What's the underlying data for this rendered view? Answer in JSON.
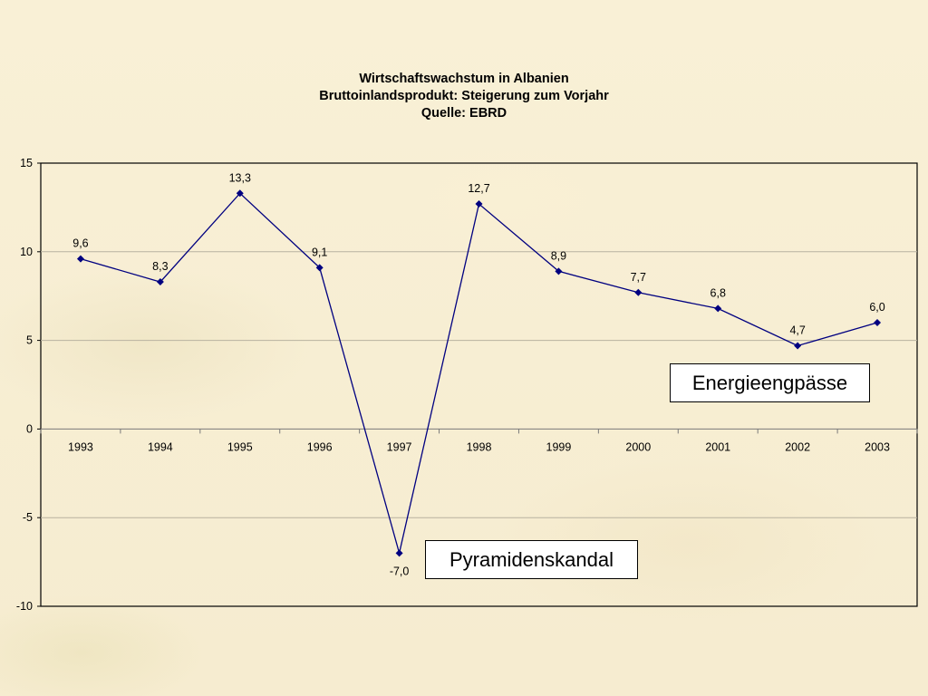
{
  "chart_data": {
    "type": "line",
    "title": "Wirtschaftswachstum in Albanien",
    "subtitle": "Bruttoinlandsprodukt: Steigerung zum Vorjahr",
    "source": "Quelle: EBRD",
    "categories": [
      "1993",
      "1994",
      "1995",
      "1996",
      "1997",
      "1998",
      "1999",
      "2000",
      "2001",
      "2002",
      "2003"
    ],
    "series": [
      {
        "values": [
          9.6,
          8.3,
          13.3,
          9.1,
          -7.0,
          12.7,
          8.9,
          7.7,
          6.8,
          4.7,
          6.0
        ]
      }
    ],
    "data_labels": [
      "9,6",
      "8,3",
      "13,3",
      "9,1",
      "-7,0",
      "12,7",
      "8,9",
      "7,7",
      "6,8",
      "4,7",
      "6,0"
    ],
    "yticks": [
      "15",
      "10",
      "5",
      "0",
      "-5",
      "-10"
    ],
    "ylim": [
      -10,
      15
    ],
    "ystep": 5,
    "grid": true,
    "legend": "none",
    "line_color": "#000080",
    "annotations": [
      {
        "text": "Energieengpässe"
      },
      {
        "text": "Pyramidenskandal"
      }
    ]
  }
}
